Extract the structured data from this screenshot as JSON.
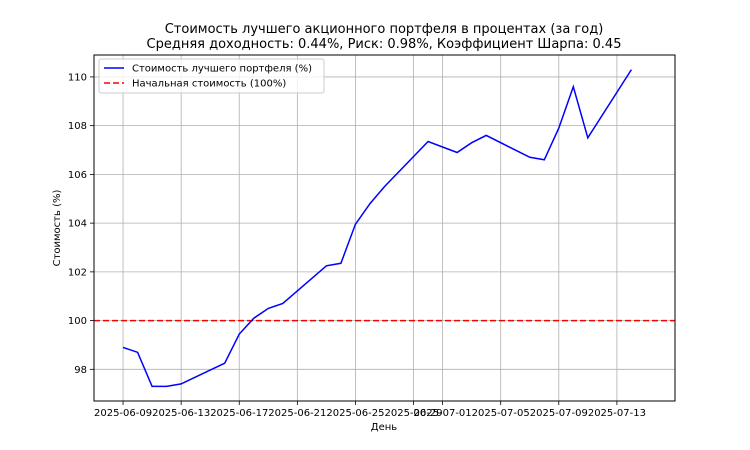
{
  "chart_data": {
    "type": "line",
    "title": "Стоимость лучшего акционного портфеля в процентах (за год)",
    "subtitle": "Средняя доходность: 0.44%, Риск: 0.98%, Коэффициент Шарпа: 0.45",
    "xlabel": "День",
    "ylabel": "Стоимость (%)",
    "x_ticks": [
      "2025-06-09",
      "2025-06-13",
      "2025-06-17",
      "2025-06-21",
      "2025-06-25",
      "2025-06-29",
      "2025-07-01",
      "2025-07-05",
      "2025-07-09",
      "2025-07-13"
    ],
    "y_ticks": [
      "98",
      "100",
      "102",
      "104",
      "106",
      "108",
      "110"
    ],
    "xlim": [
      "2025-06-07",
      "2025-07-17"
    ],
    "ylim": [
      96.7,
      110.9
    ],
    "grid": true,
    "legend_position": "top-left",
    "series": [
      {
        "name": "Стоимость лучшего портфеля (%)",
        "color": "#0000ff",
        "style": "solid",
        "points": [
          [
            "2025-06-09",
            98.9
          ],
          [
            "2025-06-10",
            98.7
          ],
          [
            "2025-06-11",
            97.3
          ],
          [
            "2025-06-12",
            97.3
          ],
          [
            "2025-06-13",
            97.4
          ],
          [
            "2025-06-16",
            98.25
          ],
          [
            "2025-06-17",
            99.45
          ],
          [
            "2025-06-18",
            100.1
          ],
          [
            "2025-06-19",
            100.5
          ],
          [
            "2025-06-20",
            100.7
          ],
          [
            "2025-06-23",
            102.25
          ],
          [
            "2025-06-24",
            102.35
          ],
          [
            "2025-06-25",
            103.95
          ],
          [
            "2025-06-26",
            104.8
          ],
          [
            "2025-06-27",
            105.5
          ],
          [
            "2025-06-30",
            107.35
          ],
          [
            "2025-07-02",
            106.9
          ],
          [
            "2025-07-03",
            107.3
          ],
          [
            "2025-07-04",
            107.6
          ],
          [
            "2025-07-07",
            106.7
          ],
          [
            "2025-07-08",
            106.6
          ],
          [
            "2025-07-09",
            107.9
          ],
          [
            "2025-07-10",
            109.6
          ],
          [
            "2025-07-11",
            107.5
          ],
          [
            "2025-07-14",
            110.3
          ]
        ]
      },
      {
        "name": "Начальная стоимость (100%)",
        "color": "#ff0000",
        "style": "dashed",
        "value": 100
      }
    ]
  }
}
